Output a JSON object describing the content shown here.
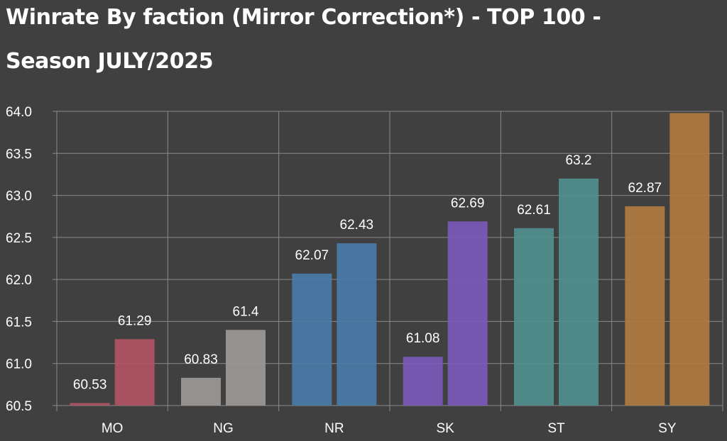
{
  "title": {
    "line1": "Winrate By faction (Mirror Correction*) - TOP 100 -",
    "line2": "Season JULY/2025"
  },
  "chart_data": {
    "type": "bar",
    "title": "Winrate By faction (Mirror Correction*) - TOP 100 - Season JULY/2025",
    "categories": [
      "MO",
      "NG",
      "NR",
      "SK",
      "ST",
      "SY"
    ],
    "series": [
      {
        "values": [
          60.53,
          60.83,
          62.07,
          61.08,
          62.61,
          62.87
        ]
      },
      {
        "values": [
          61.29,
          61.4,
          62.43,
          62.69,
          63.2,
          63.98
        ]
      }
    ],
    "data_labels": [
      [
        "60.53",
        "60.83",
        "62.07",
        "61.08",
        "62.61",
        "62.87"
      ],
      [
        "61.29",
        "61.4",
        "62.43",
        "62.69",
        "63.2",
        ""
      ]
    ],
    "category_colors": [
      "#b15464",
      "#9b9896",
      "#4a7ba8",
      "#7a59b8",
      "#4f8f8d",
      "#b07a3f"
    ],
    "ylim": [
      60.5,
      64.0
    ],
    "yticks": [
      "60.5",
      "61.0",
      "61.5",
      "62.0",
      "62.5",
      "63.0",
      "63.5",
      "64.0"
    ],
    "xlabel": "",
    "ylabel": "",
    "grid": true,
    "legend": "none"
  }
}
